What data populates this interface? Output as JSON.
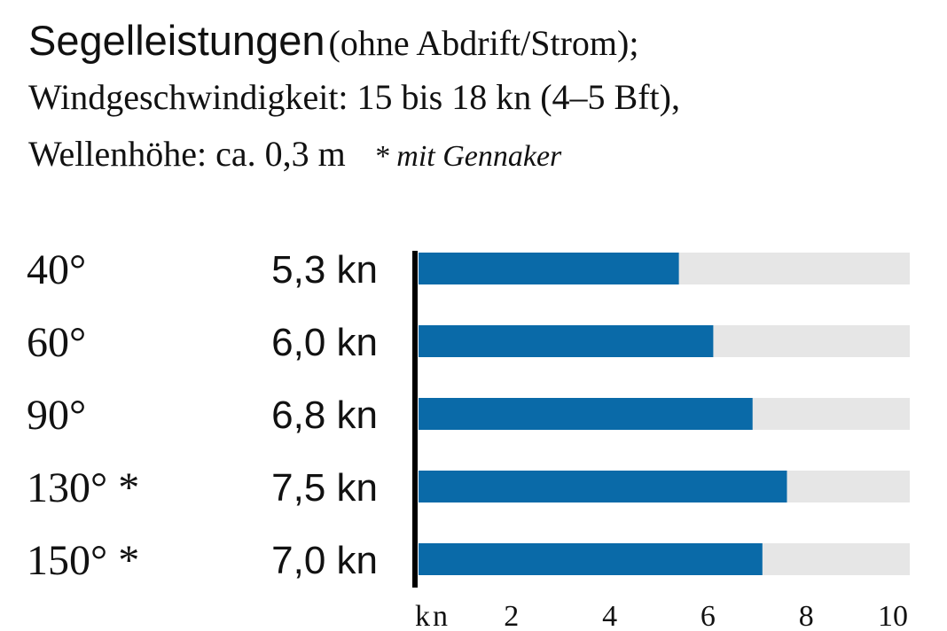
{
  "title": {
    "main": "Segelleistungen",
    "paren": "(ohne Abdrift/Strom);",
    "line2": "Windgeschwindigkeit: 15 bis 18 kn (4–5 Bft),",
    "line3": "Wellenhöhe: ca. 0,3 m",
    "note": "* mit Gennaker"
  },
  "colors": {
    "bar": "#0a6aa8",
    "track": "#e6e6e6",
    "axis": "#000000"
  },
  "chart_data": {
    "type": "bar",
    "orientation": "horizontal",
    "categories": [
      "40°",
      "60°",
      "90°",
      "130° *",
      "150° *"
    ],
    "values": [
      5.3,
      6.0,
      6.8,
      7.5,
      7.0
    ],
    "value_labels": [
      "5,3 kn",
      "6,0 kn",
      "6,8 kn",
      "7,5 kn",
      "7,0 kn"
    ],
    "xlim": [
      0,
      10
    ],
    "unit_label": "kn",
    "ticks": [
      2,
      4,
      6,
      8,
      10
    ],
    "tick_labels": [
      "2",
      "4",
      "6",
      "8",
      "10"
    ]
  }
}
